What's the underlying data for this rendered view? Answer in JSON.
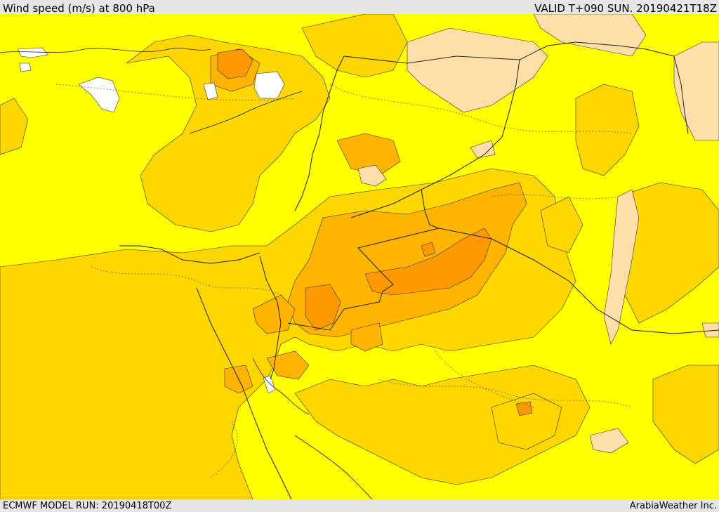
{
  "header": {
    "title": "Wind speed (m/s) at 800 hPa",
    "valid_time": "VALID T+090 SUN. 20190421T18Z"
  },
  "footer": {
    "model_run": "ECMWF MODEL RUN: 20190418T00Z",
    "credit": "ArabiaWeather Inc."
  },
  "colors": {
    "band_0_5": "#ffffff",
    "band_5_10": "#ffff00",
    "band_10_15": "#ffd700",
    "band_15_20": "#ffb400",
    "band_20_25": "#ff9900",
    "band_light": "#ffdfa8",
    "frame_bg": "#e6e6e6"
  }
}
